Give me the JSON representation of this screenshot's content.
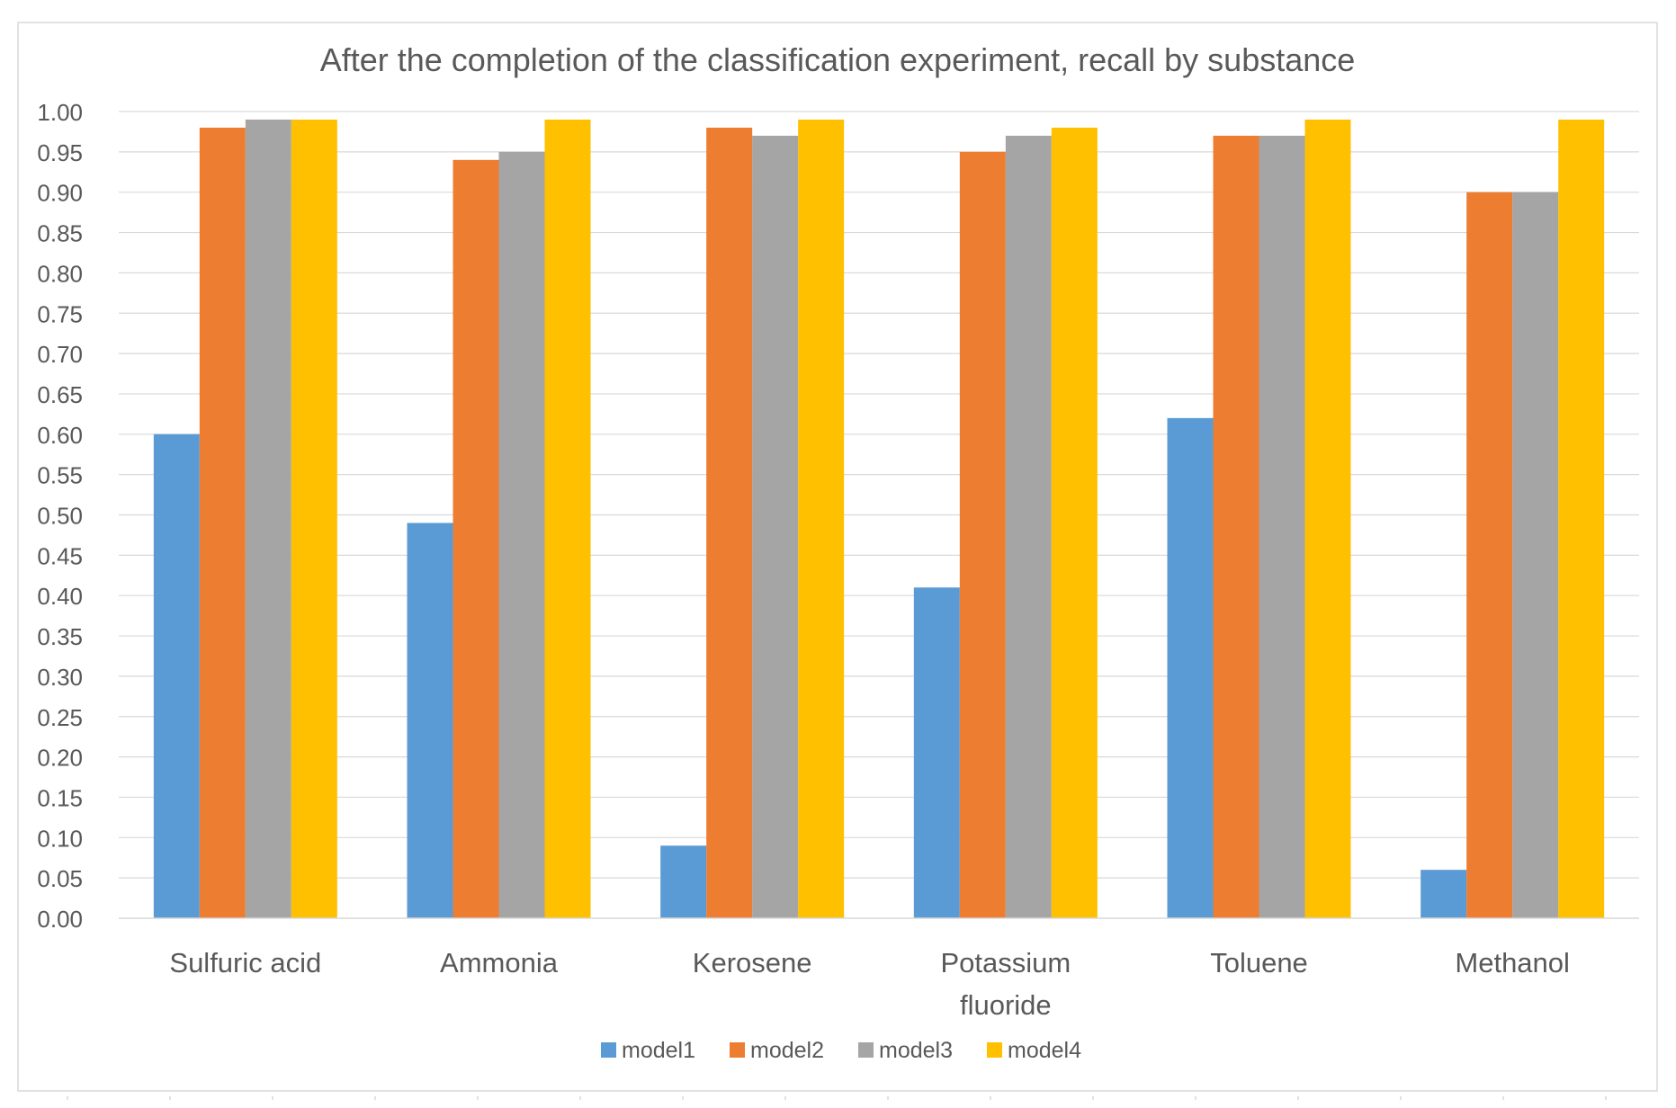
{
  "chart_data": {
    "type": "bar",
    "title": "After the completion of the classification experiment, recall by substance",
    "xlabel": "",
    "ylabel": "",
    "ylim": [
      0,
      1
    ],
    "y_ticks": [
      "0.00",
      "0.05",
      "0.10",
      "0.15",
      "0.20",
      "0.25",
      "0.30",
      "0.35",
      "0.40",
      "0.45",
      "0.50",
      "0.55",
      "0.60",
      "0.65",
      "0.70",
      "0.75",
      "0.80",
      "0.85",
      "0.90",
      "0.95",
      "1.00"
    ],
    "grid": true,
    "legend_position": "bottom",
    "categories": [
      [
        "Sulfuric acid"
      ],
      [
        "Ammonia"
      ],
      [
        "Kerosene"
      ],
      [
        "Potassium",
        "fluoride"
      ],
      [
        "Toluene"
      ],
      [
        "Methanol"
      ]
    ],
    "series": [
      {
        "name": "model1",
        "color": "#5B9BD5",
        "values": [
          0.6,
          0.49,
          0.09,
          0.41,
          0.62,
          0.06
        ]
      },
      {
        "name": "model2",
        "color": "#ED7D31",
        "values": [
          0.98,
          0.94,
          0.98,
          0.95,
          0.97,
          0.9
        ]
      },
      {
        "name": "model3",
        "color": "#A5A5A5",
        "values": [
          0.99,
          0.95,
          0.97,
          0.97,
          0.97,
          0.9
        ]
      },
      {
        "name": "model4",
        "color": "#FFC000",
        "values": [
          0.99,
          0.99,
          0.99,
          0.98,
          0.99,
          0.99
        ]
      }
    ]
  }
}
